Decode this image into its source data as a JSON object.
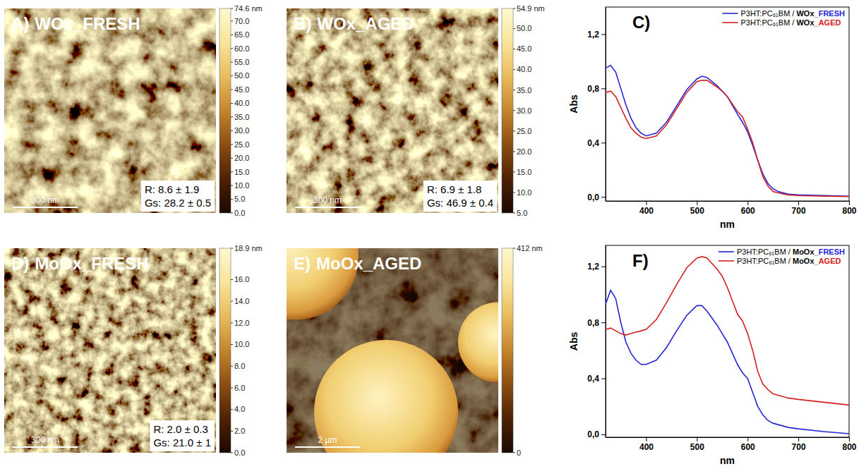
{
  "images": [
    {
      "label": "A)",
      "title": "WOx_FRESH",
      "scale_bar": "300 nm",
      "annotations": [
        "R: 8.6 ± 1.9",
        "Gs: 28.2 ± 0.5"
      ],
      "colorbar": {
        "range": [
          0,
          74.6
        ],
        "ticks": [
          {
            "value": 0,
            "label": "0.0"
          },
          {
            "value": 5,
            "label": "5.0"
          },
          {
            "value": 10,
            "label": "10.0"
          },
          {
            "value": 15,
            "label": "15.0"
          },
          {
            "value": 20,
            "label": "20.0"
          },
          {
            "value": 25,
            "label": "25.0"
          },
          {
            "value": 30,
            "label": "30.0"
          },
          {
            "value": 35,
            "label": "35.0"
          },
          {
            "value": 40,
            "label": "40.0"
          },
          {
            "value": 45,
            "label": "45.0"
          },
          {
            "value": 50,
            "label": "50.0"
          },
          {
            "value": 55,
            "label": "55.0"
          },
          {
            "value": 60,
            "label": "60.0"
          },
          {
            "value": 65,
            "label": "65.0"
          },
          {
            "value": 70,
            "label": "70.0"
          },
          {
            "value": 74.6,
            "label": "74.6 nm"
          }
        ]
      }
    },
    {
      "label": "B)",
      "title": "WOx_AGED",
      "scale_bar": "300 nm",
      "annotations": [
        "R: 6.9 ± 1.8",
        "Gs: 46.9 ± 0.4"
      ],
      "colorbar": {
        "range": [
          5,
          54.9
        ],
        "ticks": [
          {
            "value": 5,
            "label": "5.0"
          },
          {
            "value": 10,
            "label": "10.0"
          },
          {
            "value": 15,
            "label": "15.0"
          },
          {
            "value": 20,
            "label": "20.0"
          },
          {
            "value": 25,
            "label": "25.0"
          },
          {
            "value": 30,
            "label": "30.0"
          },
          {
            "value": 35,
            "label": "35.0"
          },
          {
            "value": 40,
            "label": "40.0"
          },
          {
            "value": 45,
            "label": "45.0"
          },
          {
            "value": 50,
            "label": "50.0"
          },
          {
            "value": 54.9,
            "label": "54.9 nm"
          }
        ]
      }
    },
    {
      "label": "D)",
      "title": "MoOx_FRESH",
      "scale_bar": "300 nm",
      "annotations": [
        "R: 2.0 ± 0.3",
        "Gs: 21.0 ± 1"
      ],
      "colorbar": {
        "range": [
          0,
          18.9
        ],
        "ticks": [
          {
            "value": 0,
            "label": "0.0"
          },
          {
            "value": 2,
            "label": "2.0"
          },
          {
            "value": 4,
            "label": "4.0"
          },
          {
            "value": 6,
            "label": "6.0"
          },
          {
            "value": 8,
            "label": "8.0"
          },
          {
            "value": 10,
            "label": "10.0"
          },
          {
            "value": 12,
            "label": "12.0"
          },
          {
            "value": 14,
            "label": "14.0"
          },
          {
            "value": 16,
            "label": "16.0"
          },
          {
            "value": 18.9,
            "label": "18.9 nm"
          }
        ]
      }
    },
    {
      "label": "E)",
      "title": "MoOx_AGED",
      "scale_bar": "2 µm",
      "colorbar": {
        "range": [
          0,
          412
        ],
        "ticks": [
          0,
          {
            "value": 412,
            "label": "412 nm"
          }
        ]
      }
    }
  ],
  "chart_data": [
    {
      "type": "line",
      "title": "C)",
      "xlabel": "nm",
      "ylabel": "Abs",
      "legend": "upper right",
      "x": [
        320,
        330,
        340,
        350,
        360,
        370,
        380,
        390,
        400,
        420,
        440,
        460,
        480,
        500,
        510,
        520,
        540,
        550,
        560,
        580,
        590,
        600,
        610,
        620,
        630,
        640,
        650,
        660,
        680,
        700,
        750,
        800
      ],
      "xlim": [
        320,
        800
      ],
      "xticks": [
        400,
        500,
        600,
        700,
        800
      ],
      "ylim": [
        -0.03,
        1.4
      ],
      "yticks": [
        {
          "value": 0,
          "label": "0,0"
        },
        {
          "value": 0.4,
          "label": "0,4"
        },
        {
          "value": 0.8,
          "label": "0,8"
        },
        {
          "value": 1.2,
          "label": "1,2"
        }
      ],
      "series": [
        {
          "name": "P3HT:PC₆₁BM / WOx_FRESH",
          "color": "#2424d8",
          "values": [
            0.95,
            0.97,
            0.92,
            0.8,
            0.68,
            0.58,
            0.51,
            0.47,
            0.45,
            0.47,
            0.55,
            0.67,
            0.79,
            0.87,
            0.89,
            0.88,
            0.82,
            0.78,
            0.74,
            0.61,
            0.55,
            0.48,
            0.38,
            0.27,
            0.17,
            0.1,
            0.06,
            0.04,
            0.02,
            0.015,
            0.01,
            0.005
          ]
        },
        {
          "name": "P3HT:PC₆₁BM / WOx_AGED",
          "color": "#d42020",
          "values": [
            0.77,
            0.78,
            0.74,
            0.66,
            0.58,
            0.51,
            0.47,
            0.44,
            0.43,
            0.45,
            0.53,
            0.65,
            0.77,
            0.85,
            0.86,
            0.86,
            0.81,
            0.78,
            0.74,
            0.63,
            0.59,
            0.5,
            0.4,
            0.27,
            0.15,
            0.08,
            0.04,
            0.03,
            0.015,
            0.01,
            0.005,
            0.003
          ]
        }
      ]
    },
    {
      "type": "line",
      "title": "F)",
      "xlabel": "nm",
      "ylabel": "Abs",
      "legend": "upper right",
      "x": [
        320,
        330,
        340,
        350,
        360,
        370,
        380,
        390,
        400,
        420,
        440,
        460,
        480,
        500,
        510,
        520,
        540,
        550,
        560,
        580,
        590,
        600,
        610,
        620,
        630,
        640,
        650,
        660,
        680,
        700,
        750,
        800
      ],
      "xlim": [
        320,
        800
      ],
      "xticks": [
        400,
        500,
        600,
        700,
        800
      ],
      "ylim": [
        -0.02,
        1.35
      ],
      "yticks": [
        {
          "value": 0,
          "label": "0,0"
        },
        {
          "value": 0.4,
          "label": "0,4"
        },
        {
          "value": 0.8,
          "label": "0,8"
        },
        {
          "value": 1.2,
          "label": "1,2"
        }
      ],
      "series": [
        {
          "name": "P3HT:PC₆₁BM / MoOx_FRESH",
          "color": "#2424d8",
          "values": [
            0.93,
            1.03,
            0.97,
            0.8,
            0.66,
            0.58,
            0.53,
            0.5,
            0.5,
            0.53,
            0.62,
            0.74,
            0.85,
            0.92,
            0.92,
            0.88,
            0.78,
            0.72,
            0.66,
            0.5,
            0.44,
            0.4,
            0.3,
            0.2,
            0.14,
            0.1,
            0.08,
            0.07,
            0.05,
            0.04,
            0.02,
            0.005
          ]
        },
        {
          "name": "P3HT:PC₆₁BM / MoOx_AGED",
          "color": "#d42020",
          "values": [
            0.75,
            0.76,
            0.74,
            0.72,
            0.71,
            0.72,
            0.73,
            0.74,
            0.75,
            0.82,
            0.94,
            1.07,
            1.19,
            1.26,
            1.27,
            1.26,
            1.18,
            1.13,
            1.05,
            0.86,
            0.81,
            0.72,
            0.6,
            0.45,
            0.36,
            0.32,
            0.29,
            0.28,
            0.26,
            0.25,
            0.23,
            0.21
          ]
        }
      ]
    }
  ]
}
